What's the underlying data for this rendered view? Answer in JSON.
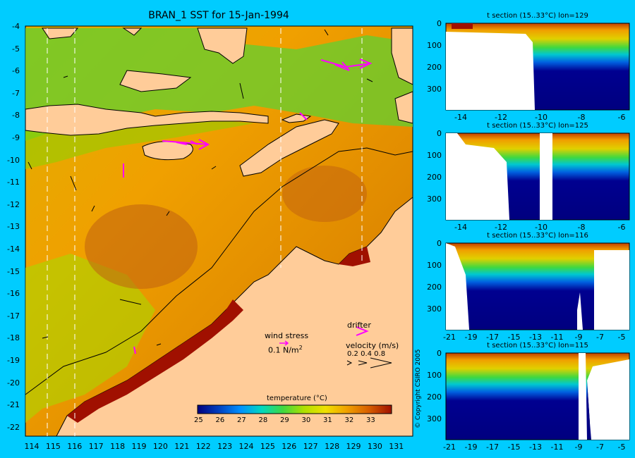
{
  "title": "BRAN_1 SST for 15-Jan-1994",
  "map": {
    "lat_labels": [
      "-4",
      "-5",
      "-6",
      "-7",
      "-8",
      "-9",
      "-10",
      "-11",
      "-12",
      "-13",
      "-14",
      "-15",
      "-16",
      "-17",
      "-18",
      "-19",
      "-20",
      "-21",
      "-22"
    ],
    "lon_labels": [
      "114",
      "115",
      "116",
      "117",
      "118",
      "119",
      "120",
      "121",
      "122",
      "123",
      "124",
      "125",
      "126",
      "127",
      "128",
      "129",
      "130",
      "131"
    ],
    "section_lons": [
      114.5,
      115.8,
      125.5,
      129.3
    ]
  },
  "legend": {
    "wind_stress_label": "wind stress",
    "wind_stress_value": "0.1 N/m",
    "wind_stress_exp": "2",
    "drifter_label": "drifter",
    "velocity_label": "velocity (m/s)",
    "velocity_values": "0.2 0.4 0.8",
    "colorbar_title": "temperature (°C)",
    "colorbar_ticks": [
      "25",
      "26",
      "27",
      "28",
      "29",
      "30",
      "31",
      "32",
      "33"
    ],
    "colorbar_colors": [
      "#00007f",
      "#0040c0",
      "#0090ff",
      "#00d8c0",
      "#40d840",
      "#b0e000",
      "#f0e000",
      "#f0a000",
      "#d86000",
      "#a01000"
    ]
  },
  "sections": [
    {
      "title": "t section (15..33°C) lon=129",
      "x_labels": [
        "-14",
        "-12",
        "-10",
        "-8",
        "-6"
      ],
      "y_labels": [
        "0",
        "100",
        "200",
        "300"
      ]
    },
    {
      "title": "t section (15..33°C) lon=125",
      "x_labels": [
        "-14",
        "-12",
        "-10",
        "-8",
        "-6"
      ],
      "y_labels": [
        "0",
        "100",
        "200",
        "300"
      ]
    },
    {
      "title": "t section (15..33°C) lon=116",
      "x_labels": [
        "-21",
        "-19",
        "-17",
        "-15",
        "-13",
        "-11",
        "-9",
        "-7",
        "-5"
      ],
      "y_labels": [
        "0",
        "100",
        "200",
        "300"
      ]
    },
    {
      "title": "t section (15..33°C) lon=115",
      "x_labels": [
        "-21",
        "-19",
        "-17",
        "-15",
        "-13",
        "-11",
        "-9",
        "-7",
        "-5"
      ],
      "y_labels": [
        "0",
        "100",
        "200",
        "300"
      ]
    }
  ],
  "copyright": "© Copyright CSIRO 2005"
}
